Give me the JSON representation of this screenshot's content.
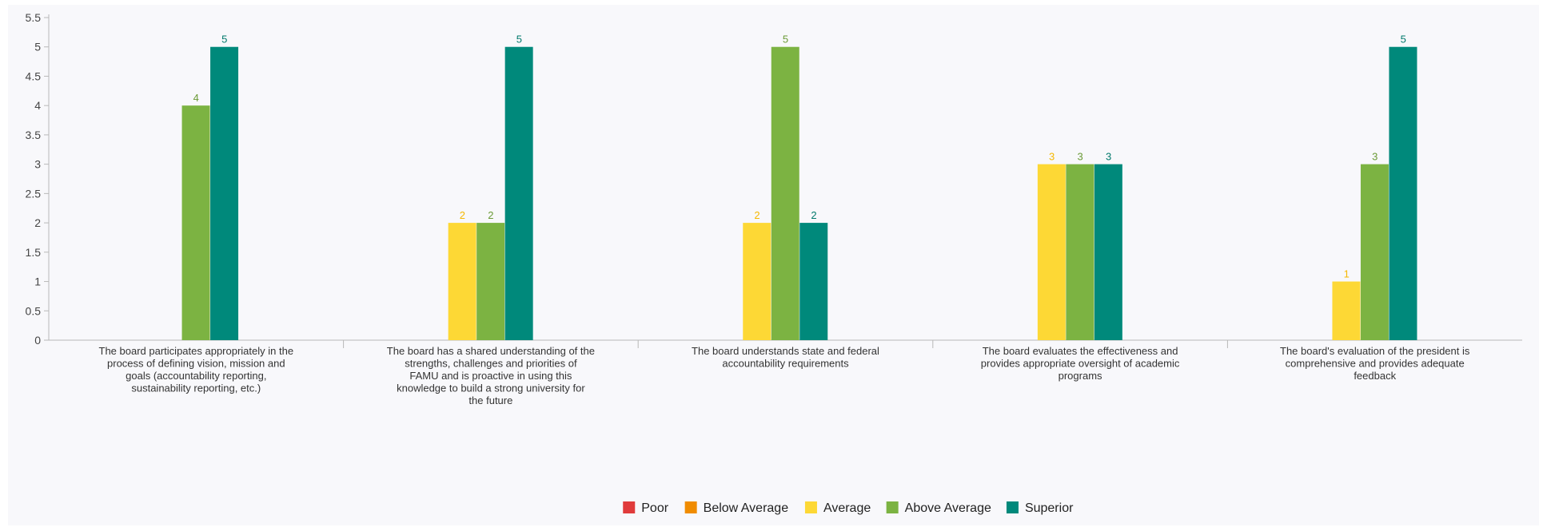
{
  "chart_data": {
    "type": "bar",
    "title": "",
    "xlabel": "",
    "ylabel": "",
    "ylim": [
      0,
      5.5
    ],
    "y_ticks": [
      "0",
      "0.5",
      "1",
      "1.5",
      "2",
      "2.5",
      "3",
      "3.5",
      "4",
      "4.5",
      "5",
      "5.5"
    ],
    "grid": false,
    "legend_position": "bottom",
    "categories": [
      "The board participates appropriately in the process of defining vision, mission and goals (accountability reporting, sustainability reporting, etc.)",
      "The board has a shared understanding of the strengths, challenges and priorities of FAMU and is proactive in using this knowledge to build a strong university for the future",
      "The board understands state and federal accountability requirements",
      "The board evaluates the effectiveness and provides appropriate oversight of academic programs",
      "The board's evaluation of the president is comprehensive and provides adequate feedback"
    ],
    "category_lines": [
      [
        "The board participates appropriately in the",
        "process of defining vision, mission and",
        "goals (accountability reporting,",
        "sustainability reporting, etc.)"
      ],
      [
        "The board has a shared understanding of the",
        "strengths, challenges and priorities of",
        "FAMU and is proactive in using this",
        "knowledge to build a strong university for",
        "the future"
      ],
      [
        "The board understands state and federal",
        "accountability requirements"
      ],
      [
        "The board evaluates the effectiveness and",
        "provides appropriate oversight of academic",
        "programs"
      ],
      [
        "The board's evaluation of the president is",
        "comprehensive and provides adequate",
        "feedback"
      ]
    ],
    "series": [
      {
        "name": "Poor",
        "color": "#e03b3b",
        "values": [
          null,
          null,
          null,
          null,
          null
        ]
      },
      {
        "name": "Below Average",
        "color": "#f08c00",
        "values": [
          null,
          null,
          null,
          null,
          null
        ]
      },
      {
        "name": "Average",
        "color": "#fdd835",
        "label_color": "#f5b800",
        "values": [
          null,
          2,
          2,
          3,
          1
        ]
      },
      {
        "name": "Above Average",
        "color": "#7cb342",
        "label_color": "#6a9a35",
        "values": [
          4,
          2,
          5,
          3,
          3
        ]
      },
      {
        "name": "Superior",
        "color": "#00897b",
        "label_color": "#00796b",
        "values": [
          5,
          5,
          2,
          3,
          5
        ]
      }
    ]
  }
}
